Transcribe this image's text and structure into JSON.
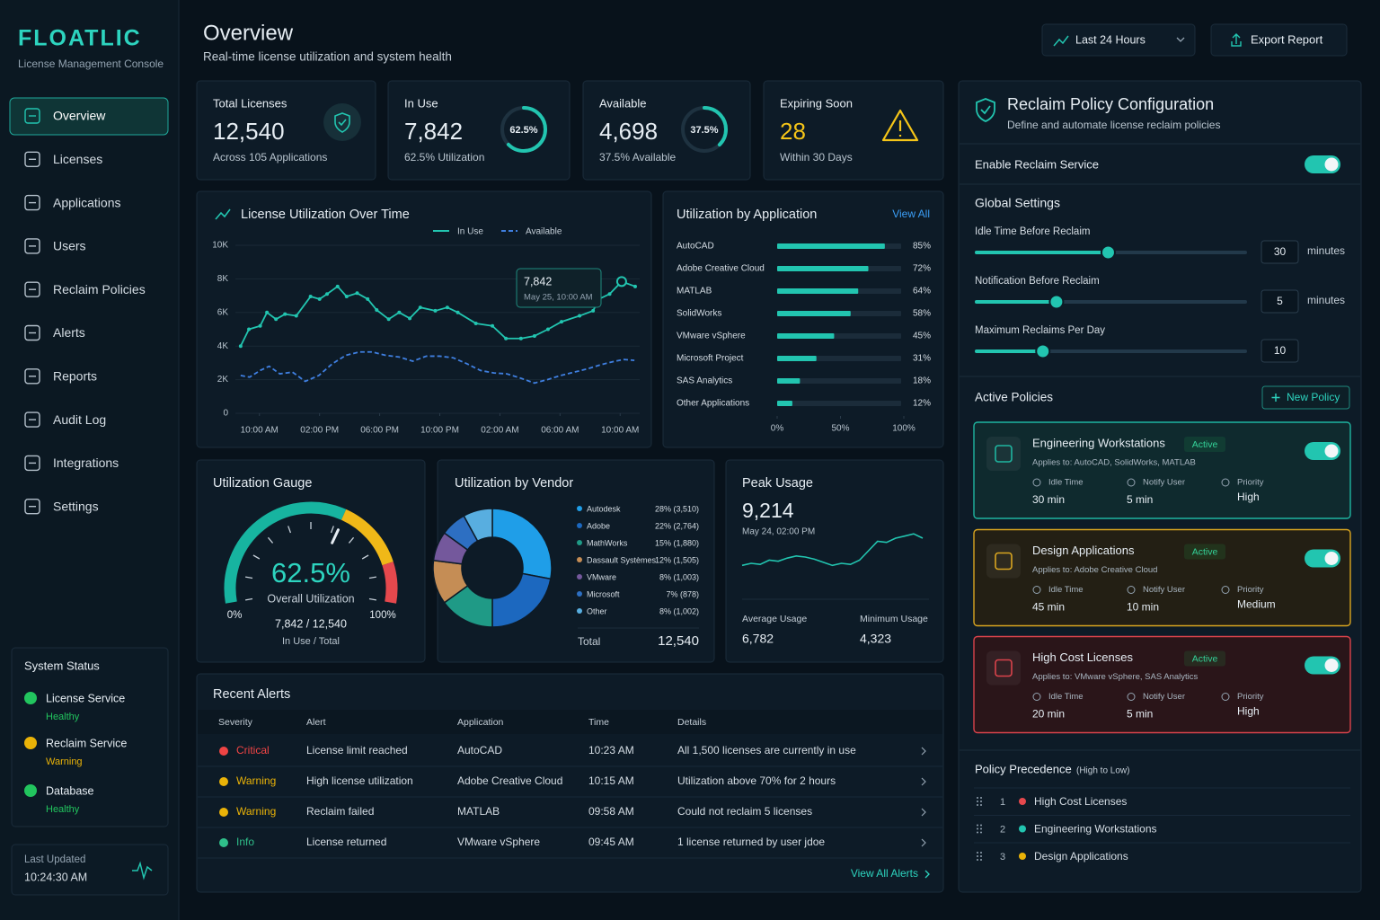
{
  "sidebar": {
    "brand": "FLOATLIC",
    "tagline": "License Management Console",
    "nav": [
      "Overview",
      "Licenses",
      "Applications",
      "Users",
      "Reclaim Policies",
      "Alerts",
      "Reports",
      "Audit Log",
      "Integrations",
      "Settings"
    ],
    "system_status": {
      "title": "System Status",
      "items": [
        {
          "name": "License Service",
          "status": "Healthy",
          "color": "#22c55e"
        },
        {
          "name": "Reclaim Service",
          "status": "Warning",
          "color": "#eab308"
        },
        {
          "name": "Database",
          "status": "Healthy",
          "color": "#22c55e"
        }
      ]
    },
    "last_updated": {
      "label": "Last Updated",
      "time": "10:24:30 AM"
    }
  },
  "header": {
    "title": "Overview",
    "subtitle": "Real-time license utilization and system health",
    "range": "Last 24 Hours",
    "export": "Export Report"
  },
  "kpis": [
    {
      "label": "Total Licenses",
      "value": "12,540",
      "note": "Across 105 Applications"
    },
    {
      "label": "In Use",
      "value": "7,842",
      "note": "62.5% Utilization",
      "ring": {
        "value": 62.5,
        "label": "62.5%"
      }
    },
    {
      "label": "Available",
      "value": "4,698",
      "note": "37.5% Available",
      "ring": {
        "value": 37.5,
        "label": "37.5%"
      }
    },
    {
      "label": "Expiring Soon",
      "value": "28",
      "note": "Within 30 Days",
      "color": "#f5c518"
    }
  ],
  "utilization_over_time": {
    "type": "line",
    "title": "License Utilization Over Time",
    "series": [
      {
        "name": "In Use",
        "color": "#22c5b0",
        "x": [
          -1.25,
          -0.7,
          0.05,
          0.5,
          1.1,
          1.7,
          2.45,
          3.4,
          4.0,
          4.5,
          5.2,
          5.8,
          6.5,
          7.2,
          7.8,
          8.6,
          9.3,
          10.0,
          10.7,
          11.7,
          12.5,
          13.2,
          14.4,
          15.5,
          16.4,
          17.4,
          18.3,
          19.2,
          20.1,
          21.3,
          22.2,
          22.6,
          23.3,
          24.1,
          25.0
        ],
        "values": [
          4000,
          5000,
          5200,
          6000,
          5600,
          5900,
          5800,
          6950,
          6800,
          7100,
          7550,
          6950,
          7150,
          6800,
          6150,
          5600,
          6000,
          5650,
          6300,
          6100,
          6300,
          6000,
          5350,
          5200,
          4450,
          4450,
          4600,
          5000,
          5450,
          5800,
          6100,
          6800,
          7100,
          7842,
          7550
        ]
      },
      {
        "name": "Available",
        "color": "#3f7fe0",
        "dashed": true,
        "x": [
          -1.25,
          -0.65,
          0.05,
          0.65,
          1.35,
          2.2,
          3.05,
          3.95,
          4.85,
          5.75,
          6.65,
          7.5,
          8.4,
          9.3,
          10.2,
          11.1,
          12.0,
          12.9,
          13.8,
          14.7,
          15.6,
          16.45,
          17.35,
          18.3,
          19.15,
          20.05,
          20.95,
          21.85,
          22.75,
          23.65,
          24.25,
          24.95
        ],
        "values": [
          2250,
          2150,
          2550,
          2800,
          2350,
          2450,
          1900,
          2250,
          2950,
          3450,
          3650,
          3650,
          3450,
          3350,
          3100,
          3400,
          3400,
          3300,
          2950,
          2550,
          2400,
          2350,
          2100,
          1800,
          2000,
          2250,
          2450,
          2650,
          2900,
          3100,
          3200,
          3150
        ]
      }
    ],
    "xlim": [
      -1.6,
      25.3
    ],
    "xticks": [
      {
        "value": 0,
        "label": "10:00 AM"
      },
      {
        "value": 4,
        "label": "02:00 PM"
      },
      {
        "value": 8,
        "label": "06:00 PM"
      },
      {
        "value": 12,
        "label": "10:00 PM"
      },
      {
        "value": 16,
        "label": "02:00 AM"
      },
      {
        "value": 20,
        "label": "06:00 AM"
      },
      {
        "value": 24,
        "label": "10:00 AM"
      }
    ],
    "ylim": [
      0,
      10000
    ],
    "yticks": [
      0,
      {
        "value": 2000,
        "label": "2K"
      },
      {
        "value": 4000,
        "label": "4K"
      },
      {
        "value": 6000,
        "label": "6K"
      },
      {
        "value": 8000,
        "label": "8K"
      },
      {
        "value": 10000,
        "label": "10K"
      }
    ],
    "grid": true,
    "tooltip": {
      "value": "7,842",
      "time": "May 25, 10:00 AM"
    }
  },
  "utilization_by_application": {
    "type": "bar",
    "title": "Utilization by Application",
    "link": "View All",
    "categories": [
      "AutoCAD",
      "Adobe Creative Cloud",
      "MATLAB",
      "SolidWorks",
      "VMware vSphere",
      "Microsoft Project",
      "SAS Analytics",
      "Other Applications"
    ],
    "values": [
      85,
      72,
      64,
      58,
      45,
      31,
      18,
      12
    ],
    "value_labels": [
      "85%",
      "72%",
      "64%",
      "58%",
      "45%",
      "31%",
      "18%",
      "12%"
    ],
    "color": "#22c5b0",
    "xlim": [
      0,
      100
    ],
    "xticks": [
      {
        "value": 0,
        "label": "0%"
      },
      {
        "value": 50,
        "label": "50%"
      },
      {
        "value": 100,
        "label": "100%"
      }
    ]
  },
  "gauge": {
    "type": "gauge",
    "title": "Utilization Gauge",
    "value": 62.5,
    "value_label": "62.5%",
    "caption": "Overall Utilization",
    "ticks": [
      {
        "value": 0,
        "label": "0%"
      },
      {
        "value": 100,
        "label": "100%"
      }
    ],
    "ratio": "7,842 / 12,540",
    "ratio_caption": "In Use / Total"
  },
  "vendor": {
    "type": "pie",
    "title": "Utilization by Vendor",
    "categories": [
      "Autodesk",
      "Adobe",
      "MathWorks",
      "Dassault Systèmes",
      "VMware",
      "Microsoft",
      "Other"
    ],
    "values": [
      28,
      22,
      15,
      12,
      8,
      7,
      8
    ],
    "value_labels": [
      "28% (3,510)",
      "22% (2,764)",
      "15% (1,880)",
      "12% (1,505)",
      "8% (1,003)",
      "7%    (878)",
      "8% (1,002)"
    ],
    "colors": [
      "#1f9ee8",
      "#1c68bf",
      "#1f9a86",
      "#c58d55",
      "#74589c",
      "#2d6fc2",
      "#58aee0"
    ],
    "total_label": "Total",
    "total": "12,540"
  },
  "peak": {
    "type": "line",
    "title": "Peak Usage",
    "value": "9,214",
    "time": "May 24, 02:00 PM",
    "color": "#22c5b0",
    "values": [
      6200,
      6400,
      6300,
      6700,
      6600,
      6900,
      7100,
      7000,
      6800,
      6500,
      6200,
      6400,
      6300,
      6700,
      7600,
      8500,
      8400,
      8800,
      9000,
      9214,
      8800
    ],
    "ylim": [
      4000,
      10000
    ],
    "stats": [
      {
        "label": "Average Usage",
        "value": "6,782"
      },
      {
        "label": "Minimum Usage",
        "value": "4,323"
      }
    ]
  },
  "alerts": {
    "title": "Recent Alerts",
    "columns": [
      "Severity",
      "Alert",
      "Application",
      "Time",
      "Details"
    ],
    "rows": [
      {
        "severity": "Critical",
        "color": "#ef4444",
        "alert": "License limit reached",
        "application": "AutoCAD",
        "time": "10:23 AM",
        "details": "All 1,500 licenses are currently in use"
      },
      {
        "severity": "Warning",
        "color": "#eab308",
        "alert": "High license utilization",
        "application": "Adobe Creative Cloud",
        "time": "10:15 AM",
        "details": "Utilization above 70% for 2 hours"
      },
      {
        "severity": "Warning",
        "color": "#eab308",
        "alert": "Reclaim failed",
        "application": "MATLAB",
        "time": "09:58 AM",
        "details": "Could not reclaim 5 licenses"
      },
      {
        "severity": "Info",
        "color": "#2fbf8a",
        "alert": "License returned",
        "application": "VMware vSphere",
        "time": "09:45 AM",
        "details": "1 license returned by user jdoe"
      }
    ],
    "footer": "View All Alerts"
  },
  "reclaim": {
    "title": "Reclaim Policy Configuration",
    "subtitle": "Define and automate license reclaim policies",
    "service": {
      "label": "Enable Reclaim Service",
      "enabled": true
    },
    "global_title": "Global Settings",
    "sliders": [
      {
        "label": "Idle Time Before Reclaim",
        "value": 30,
        "unit": "minutes"
      },
      {
        "label": "Notification Before Reclaim",
        "value": 5,
        "unit": "minutes"
      },
      {
        "label": "Maximum Reclaims Per Day",
        "value": 10
      }
    ],
    "active_title": "Active Policies",
    "new_policy": "New Policy",
    "policy_labels": [
      "Idle Time",
      "Notify User",
      "Priority"
    ],
    "policies": [
      {
        "name": "Engineering Workstations",
        "status": "Active",
        "applies": "Applies to: AutoCAD, SolidWorks, MATLAB",
        "idle": "30 min",
        "notify": "5 min",
        "priority": "High",
        "color": "#1fb5a0",
        "enabled": true
      },
      {
        "name": "Design Applications",
        "status": "Active",
        "applies": "Applies to: Adobe Creative Cloud",
        "idle": "45 min",
        "notify": "10 min",
        "priority": "Medium",
        "color": "#d9a520",
        "enabled": true
      },
      {
        "name": "High Cost Licenses",
        "status": "Active",
        "applies": "Applies to: VMware vSphere, SAS Analytics",
        "idle": "20 min",
        "notify": "5 min",
        "priority": "High",
        "color": "#d9434b",
        "enabled": true
      }
    ],
    "precedence": {
      "title": "Policy Precedence",
      "note": "(High to Low)",
      "items": [
        {
          "rank": 1,
          "name": "High Cost Licenses",
          "color": "#e5484d"
        },
        {
          "rank": 2,
          "name": "Engineering Workstations",
          "color": "#22c5b0"
        },
        {
          "rank": 3,
          "name": "Design Applications",
          "color": "#eab308"
        }
      ]
    }
  }
}
